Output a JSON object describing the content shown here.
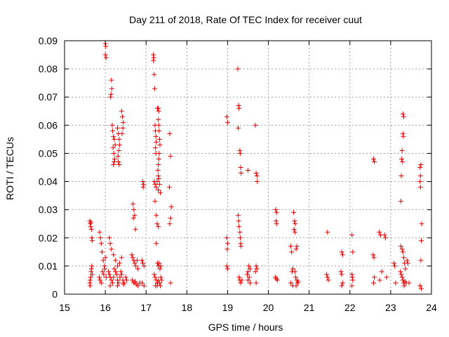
{
  "chart_data": {
    "type": "scatter",
    "title": "Day 211 of 2018, Rate Of TEC Index for receiver cuut",
    "xlabel": "GPS time / hours",
    "ylabel": "ROTI / TECUs",
    "xlim": [
      15,
      24
    ],
    "ylim": [
      0,
      0.09
    ],
    "xticks": [
      "15",
      "16",
      "17",
      "18",
      "19",
      "20",
      "21",
      "22",
      "23",
      "24"
    ],
    "yticks": [
      "0",
      "0.01",
      "0.02",
      "0.03",
      "0.04",
      "0.05",
      "0.06",
      "0.07",
      "0.08",
      "0.09"
    ],
    "grid": true,
    "marker": "+",
    "color": "#e00000",
    "series": [
      {
        "name": "ROTI",
        "points": [
          [
            15.62,
            0.026
          ],
          [
            15.63,
            0.025
          ],
          [
            15.64,
            0.024
          ],
          [
            15.65,
            0.0255
          ],
          [
            15.66,
            0.023
          ],
          [
            15.67,
            0.02
          ],
          [
            15.68,
            0.019
          ],
          [
            15.62,
            0.004
          ],
          [
            15.63,
            0.005
          ],
          [
            15.64,
            0.006
          ],
          [
            15.65,
            0.008
          ],
          [
            15.66,
            0.009
          ],
          [
            15.67,
            0.01
          ],
          [
            15.68,
            0.007
          ],
          [
            15.63,
            0.003
          ],
          [
            15.86,
            0.022
          ],
          [
            15.88,
            0.02
          ],
          [
            15.9,
            0.018
          ],
          [
            15.92,
            0.015
          ],
          [
            15.95,
            0.012
          ],
          [
            15.98,
            0.01
          ],
          [
            16.0,
            0.013
          ],
          [
            15.85,
            0.006
          ],
          [
            15.87,
            0.005
          ],
          [
            15.9,
            0.004
          ],
          [
            15.93,
            0.008
          ],
          [
            15.96,
            0.007
          ],
          [
            15.99,
            0.009
          ],
          [
            16.02,
            0.006
          ],
          [
            16.0,
            0.089
          ],
          [
            16.01,
            0.088
          ],
          [
            16.0,
            0.085
          ],
          [
            16.02,
            0.084
          ],
          [
            16.15,
            0.076
          ],
          [
            16.16,
            0.073
          ],
          [
            16.14,
            0.071
          ],
          [
            16.13,
            0.07
          ],
          [
            16.17,
            0.06
          ],
          [
            16.18,
            0.058
          ],
          [
            16.2,
            0.056
          ],
          [
            16.22,
            0.055
          ],
          [
            16.24,
            0.053
          ],
          [
            16.19,
            0.052
          ],
          [
            16.21,
            0.05
          ],
          [
            16.23,
            0.048
          ],
          [
            16.22,
            0.047
          ],
          [
            16.2,
            0.046
          ],
          [
            16.3,
            0.059
          ],
          [
            16.32,
            0.057
          ],
          [
            16.34,
            0.055
          ],
          [
            16.35,
            0.053
          ],
          [
            16.33,
            0.051
          ],
          [
            16.31,
            0.049
          ],
          [
            16.32,
            0.047
          ],
          [
            16.34,
            0.046
          ],
          [
            16.4,
            0.065
          ],
          [
            16.42,
            0.063
          ],
          [
            16.44,
            0.061
          ],
          [
            16.43,
            0.059
          ],
          [
            16.41,
            0.057
          ],
          [
            16.1,
            0.02
          ],
          [
            16.12,
            0.018
          ],
          [
            16.15,
            0.016
          ],
          [
            16.2,
            0.014
          ],
          [
            16.25,
            0.012
          ],
          [
            16.3,
            0.01
          ],
          [
            16.35,
            0.011
          ],
          [
            16.4,
            0.013
          ],
          [
            16.08,
            0.008
          ],
          [
            16.1,
            0.007
          ],
          [
            16.12,
            0.006
          ],
          [
            16.15,
            0.005
          ],
          [
            16.18,
            0.004
          ],
          [
            16.2,
            0.006
          ],
          [
            16.22,
            0.009
          ],
          [
            16.25,
            0.008
          ],
          [
            16.28,
            0.007
          ],
          [
            16.3,
            0.005
          ],
          [
            16.33,
            0.004
          ],
          [
            16.36,
            0.006
          ],
          [
            16.38,
            0.008
          ],
          [
            16.4,
            0.007
          ],
          [
            16.43,
            0.005
          ],
          [
            16.46,
            0.004
          ],
          [
            16.5,
            0.006
          ],
          [
            16.52,
            0.005
          ],
          [
            16.12,
            0.003
          ],
          [
            16.3,
            0.003
          ],
          [
            16.45,
            0.0035
          ],
          [
            16.68,
            0.032
          ],
          [
            16.7,
            0.03
          ],
          [
            16.72,
            0.028
          ],
          [
            16.69,
            0.027
          ],
          [
            16.74,
            0.023
          ],
          [
            16.65,
            0.014
          ],
          [
            16.67,
            0.013
          ],
          [
            16.7,
            0.012
          ],
          [
            16.72,
            0.011
          ],
          [
            16.75,
            0.01
          ],
          [
            16.78,
            0.012
          ],
          [
            16.8,
            0.009
          ],
          [
            16.66,
            0.005
          ],
          [
            16.7,
            0.004
          ],
          [
            16.73,
            0.0045
          ],
          [
            16.76,
            0.0035
          ],
          [
            16.8,
            0.003
          ],
          [
            16.85,
            0.004
          ],
          [
            16.92,
            0.04
          ],
          [
            16.93,
            0.038
          ],
          [
            16.94,
            0.039
          ],
          [
            16.9,
            0.012
          ],
          [
            16.92,
            0.011
          ],
          [
            16.95,
            0.01
          ],
          [
            16.9,
            0.004
          ],
          [
            16.95,
            0.003
          ],
          [
            17.18,
            0.085
          ],
          [
            17.19,
            0.084
          ],
          [
            17.18,
            0.083
          ],
          [
            17.2,
            0.078
          ],
          [
            17.21,
            0.073
          ],
          [
            17.22,
            0.06
          ],
          [
            17.23,
            0.058
          ],
          [
            17.24,
            0.056
          ],
          [
            17.25,
            0.054
          ],
          [
            17.23,
            0.052
          ],
          [
            17.24,
            0.05
          ],
          [
            17.28,
            0.066
          ],
          [
            17.3,
            0.066
          ],
          [
            17.31,
            0.065
          ],
          [
            17.3,
            0.062
          ],
          [
            17.31,
            0.06
          ],
          [
            17.32,
            0.058
          ],
          [
            17.33,
            0.055
          ],
          [
            17.34,
            0.053
          ],
          [
            17.32,
            0.05
          ],
          [
            17.31,
            0.048
          ],
          [
            17.3,
            0.046
          ],
          [
            17.29,
            0.044
          ],
          [
            17.3,
            0.042
          ],
          [
            17.31,
            0.041
          ],
          [
            17.2,
            0.04
          ],
          [
            17.22,
            0.039
          ],
          [
            17.25,
            0.038
          ],
          [
            17.27,
            0.04
          ],
          [
            17.3,
            0.037
          ],
          [
            17.33,
            0.039
          ],
          [
            17.35,
            0.036
          ],
          [
            17.22,
            0.033
          ],
          [
            17.25,
            0.028
          ],
          [
            17.27,
            0.025
          ],
          [
            17.3,
            0.024
          ],
          [
            17.25,
            0.018
          ],
          [
            17.28,
            0.011
          ],
          [
            17.3,
            0.01
          ],
          [
            17.32,
            0.011
          ],
          [
            17.34,
            0.009
          ],
          [
            17.36,
            0.01
          ],
          [
            17.2,
            0.007
          ],
          [
            17.22,
            0.006
          ],
          [
            17.25,
            0.005
          ],
          [
            17.28,
            0.004
          ],
          [
            17.3,
            0.005
          ],
          [
            17.33,
            0.004
          ],
          [
            17.36,
            0.006
          ],
          [
            17.38,
            0.005
          ],
          [
            17.23,
            0.003
          ],
          [
            17.27,
            0.003
          ],
          [
            17.35,
            0.003
          ],
          [
            17.58,
            0.057
          ],
          [
            17.6,
            0.049
          ],
          [
            17.57,
            0.038
          ],
          [
            17.62,
            0.031
          ],
          [
            17.6,
            0.027
          ],
          [
            17.58,
            0.025
          ],
          [
            17.6,
            0.004
          ],
          [
            18.98,
            0.063
          ],
          [
            19.0,
            0.061
          ],
          [
            18.98,
            0.02
          ],
          [
            19.0,
            0.018
          ],
          [
            18.99,
            0.016
          ],
          [
            18.98,
            0.01
          ],
          [
            19.0,
            0.009
          ],
          [
            19.25,
            0.08
          ],
          [
            19.27,
            0.067
          ],
          [
            19.28,
            0.066
          ],
          [
            19.26,
            0.059
          ],
          [
            19.3,
            0.051
          ],
          [
            19.31,
            0.05
          ],
          [
            19.32,
            0.045
          ],
          [
            19.33,
            0.043
          ],
          [
            19.26,
            0.028
          ],
          [
            19.27,
            0.026
          ],
          [
            19.28,
            0.024
          ],
          [
            19.3,
            0.022
          ],
          [
            19.31,
            0.02
          ],
          [
            19.32,
            0.018
          ],
          [
            19.33,
            0.017
          ],
          [
            19.28,
            0.006
          ],
          [
            19.3,
            0.005
          ],
          [
            19.32,
            0.004
          ],
          [
            19.35,
            0.005
          ],
          [
            19.5,
            0.044
          ],
          [
            19.52,
            0.01
          ],
          [
            19.55,
            0.009
          ],
          [
            19.5,
            0.008
          ],
          [
            19.48,
            0.007
          ],
          [
            19.53,
            0.006
          ],
          [
            19.5,
            0.005
          ],
          [
            19.55,
            0.004
          ],
          [
            19.68,
            0.06
          ],
          [
            19.7,
            0.043
          ],
          [
            19.72,
            0.042
          ],
          [
            19.73,
            0.04
          ],
          [
            19.7,
            0.01
          ],
          [
            19.72,
            0.009
          ],
          [
            19.68,
            0.008
          ],
          [
            19.7,
            0.004
          ],
          [
            20.18,
            0.03
          ],
          [
            20.2,
            0.029
          ],
          [
            20.19,
            0.026
          ],
          [
            20.2,
            0.025
          ],
          [
            20.17,
            0.006
          ],
          [
            20.2,
            0.0055
          ],
          [
            20.22,
            0.005
          ],
          [
            20.55,
            0.017
          ],
          [
            20.57,
            0.015
          ],
          [
            20.6,
            0.009
          ],
          [
            20.58,
            0.008
          ],
          [
            20.55,
            0.004
          ],
          [
            20.6,
            0.003
          ],
          [
            20.62,
            0.029
          ],
          [
            20.64,
            0.026
          ],
          [
            20.66,
            0.025
          ],
          [
            20.63,
            0.023
          ],
          [
            20.65,
            0.022
          ],
          [
            20.7,
            0.017
          ],
          [
            20.68,
            0.016
          ],
          [
            20.65,
            0.008
          ],
          [
            20.67,
            0.006
          ],
          [
            20.7,
            0.005
          ],
          [
            20.72,
            0.004
          ],
          [
            20.68,
            0.003
          ],
          [
            20.73,
            0.0045
          ],
          [
            21.45,
            0.022
          ],
          [
            21.43,
            0.007
          ],
          [
            21.45,
            0.006
          ],
          [
            21.47,
            0.005
          ],
          [
            21.8,
            0.015
          ],
          [
            21.82,
            0.014
          ],
          [
            21.78,
            0.008
          ],
          [
            21.8,
            0.007
          ],
          [
            21.82,
            0.004
          ],
          [
            21.8,
            0.003
          ],
          [
            22.05,
            0.021
          ],
          [
            22.07,
            0.015
          ],
          [
            22.05,
            0.007
          ],
          [
            22.06,
            0.006
          ],
          [
            22.07,
            0.005
          ],
          [
            22.05,
            0.003
          ],
          [
            22.58,
            0.048
          ],
          [
            22.6,
            0.047
          ],
          [
            22.57,
            0.014
          ],
          [
            22.59,
            0.013
          ],
          [
            22.6,
            0.006
          ],
          [
            22.58,
            0.004
          ],
          [
            22.72,
            0.022
          ],
          [
            22.75,
            0.021
          ],
          [
            22.78,
            0.008
          ],
          [
            22.73,
            0.005
          ],
          [
            22.85,
            0.021
          ],
          [
            22.87,
            0.02
          ],
          [
            22.9,
            0.006
          ],
          [
            23.08,
            0.011
          ],
          [
            23.1,
            0.01
          ],
          [
            23.12,
            0.004
          ],
          [
            23.3,
            0.064
          ],
          [
            23.32,
            0.063
          ],
          [
            23.3,
            0.057
          ],
          [
            23.31,
            0.056
          ],
          [
            23.28,
            0.051
          ],
          [
            23.27,
            0.048
          ],
          [
            23.29,
            0.047
          ],
          [
            23.26,
            0.042
          ],
          [
            23.25,
            0.033
          ],
          [
            23.25,
            0.017
          ],
          [
            23.28,
            0.016
          ],
          [
            23.3,
            0.015
          ],
          [
            23.32,
            0.013
          ],
          [
            23.34,
            0.011
          ],
          [
            23.36,
            0.009
          ],
          [
            23.24,
            0.008
          ],
          [
            23.26,
            0.007
          ],
          [
            23.28,
            0.006
          ],
          [
            23.3,
            0.005
          ],
          [
            23.32,
            0.004
          ],
          [
            23.35,
            0.0045
          ],
          [
            23.38,
            0.004
          ],
          [
            23.33,
            0.003
          ],
          [
            23.4,
            0.012
          ],
          [
            23.42,
            0.011
          ],
          [
            23.45,
            0.004
          ],
          [
            23.72,
            0.045
          ],
          [
            23.74,
            0.046
          ],
          [
            23.73,
            0.042
          ],
          [
            23.72,
            0.04
          ],
          [
            23.73,
            0.038
          ],
          [
            23.76,
            0.025
          ],
          [
            23.75,
            0.019
          ],
          [
            23.74,
            0.012
          ],
          [
            23.72,
            0.003
          ],
          [
            23.75,
            0.002
          ]
        ]
      }
    ]
  }
}
